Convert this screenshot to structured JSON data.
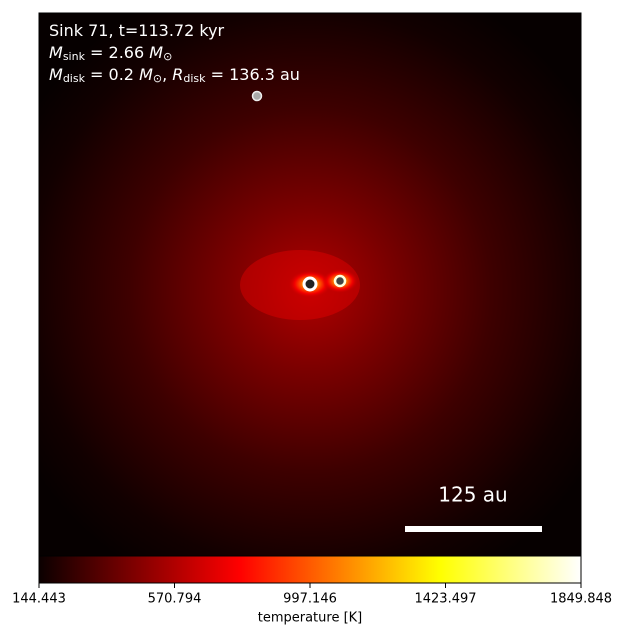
{
  "chart_data": {
    "type": "heatmap",
    "annotation_lines": [
      [
        "Sink 71, t=113.72 kyr"
      ],
      [
        "M",
        "sink",
        " = 2.66 ",
        "M",
        "⊙"
      ],
      [
        "M",
        "disk",
        " = 0.2 ",
        "M",
        "⊙",
        ", ",
        "R",
        "disk",
        " = 136.3 au"
      ]
    ],
    "scale_bar_label": "125 au",
    "colorbar": {
      "label": "temperature [K]",
      "lim": [
        144.443,
        1849.848
      ],
      "ticks": [
        144.443,
        570.794,
        997.146,
        1423.497,
        1849.848
      ]
    }
  }
}
